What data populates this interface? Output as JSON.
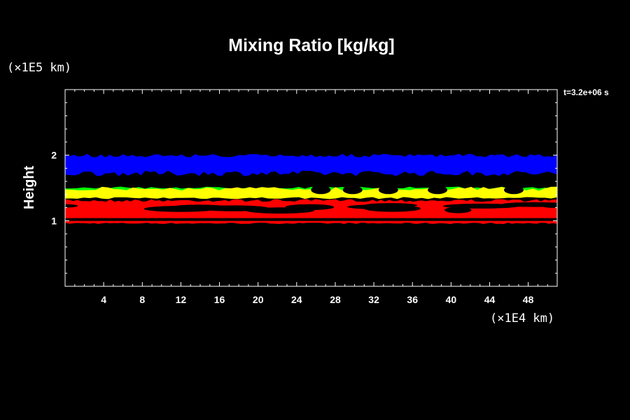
{
  "chart_data": {
    "type": "heatmap",
    "title": "Mixing Ratio [kg/kg]",
    "xlabel": "",
    "ylabel": "Height",
    "x_unit_label": "(×1E4 km)",
    "y_unit_label": "(×1E5 km)",
    "time_label": "t=3.2e+06 s",
    "xlim": [
      0,
      51
    ],
    "ylim": [
      0,
      3
    ],
    "x_ticks": [
      4,
      8,
      12,
      16,
      20,
      24,
      28,
      32,
      36,
      40,
      44,
      48
    ],
    "y_ticks": [
      1,
      2
    ],
    "grid": false,
    "legend": "none",
    "layers": [
      {
        "level": "blue",
        "color": "#0000ff",
        "y_range": [
          1.68,
          2.02
        ]
      },
      {
        "level": "green",
        "color": "#00ff00",
        "y_range": [
          1.43,
          1.52
        ]
      },
      {
        "level": "yellow",
        "color": "#ffff00",
        "y_range": [
          1.33,
          1.52
        ]
      },
      {
        "level": "red",
        "color": "#ff0000",
        "y_range": [
          0.95,
          1.33
        ]
      }
    ]
  }
}
